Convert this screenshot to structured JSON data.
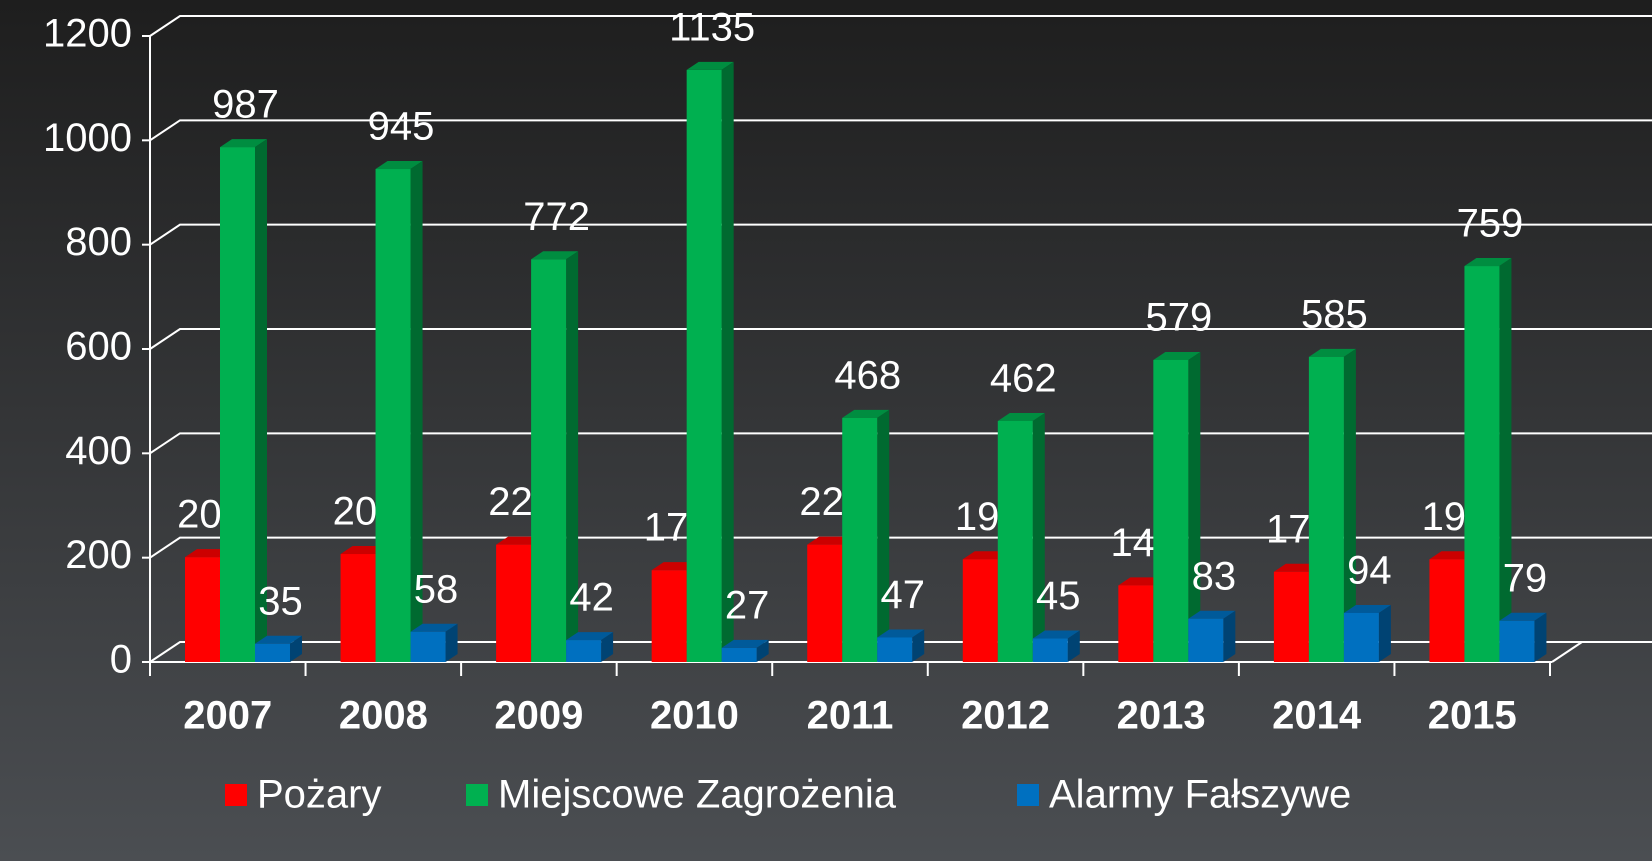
{
  "chart_data": {
    "type": "bar",
    "categories": [
      "2007",
      "2008",
      "2009",
      "2010",
      "2011",
      "2012",
      "2013",
      "2014",
      "2015"
    ],
    "series": [
      {
        "name": "Pożary",
        "color": "#ff0000",
        "values": [
          201,
          207,
          225,
          176,
          225,
          197,
          147,
          173,
          197
        ]
      },
      {
        "name": "Miejscowe Zagrożenia",
        "color": "#00b050",
        "values": [
          987,
          945,
          772,
          1135,
          468,
          462,
          579,
          585,
          759
        ]
      },
      {
        "name": "Alarmy Fałszywe",
        "color": "#0070c0",
        "values": [
          35,
          58,
          42,
          27,
          47,
          45,
          83,
          94,
          79
        ]
      }
    ],
    "ylim": [
      0,
      1200
    ],
    "yticks": [
      0,
      200,
      400,
      600,
      800,
      1000,
      1200
    ],
    "grid": true,
    "legend": "bottom"
  }
}
